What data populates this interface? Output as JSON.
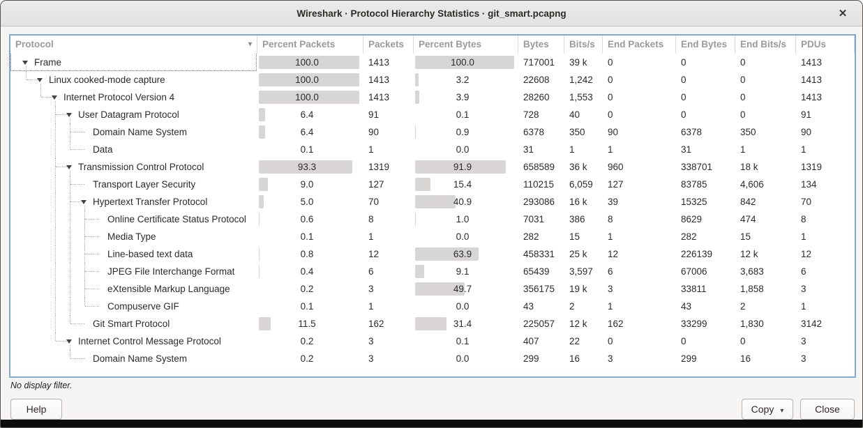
{
  "window": {
    "title": "Wireshark · Protocol Hierarchy Statistics · git_smart.pcapng"
  },
  "icons": {
    "close": "✕",
    "sort_down": "▾",
    "dropdown": "▾"
  },
  "table": {
    "columns": [
      {
        "key": "protocol",
        "label": "Protocol",
        "sorted": true
      },
      {
        "key": "pct_packets",
        "label": "Percent Packets",
        "percent": true
      },
      {
        "key": "packets",
        "label": "Packets"
      },
      {
        "key": "pct_bytes",
        "label": "Percent Bytes",
        "percent": true
      },
      {
        "key": "bytes",
        "label": "Bytes"
      },
      {
        "key": "bits",
        "label": "Bits/s"
      },
      {
        "key": "end_packets",
        "label": "End Packets"
      },
      {
        "key": "end_bytes",
        "label": "End Bytes"
      },
      {
        "key": "end_bits",
        "label": "End Bits/s"
      },
      {
        "key": "pdus",
        "label": "PDUs"
      }
    ],
    "rows": [
      {
        "protocol": "Frame",
        "level": 0,
        "expandable": true,
        "selected": true,
        "pct_packets": "100.0",
        "packets": "1413",
        "pct_bytes": "100.0",
        "bytes": "717001",
        "bits": "39 k",
        "end_packets": "0",
        "end_bytes": "0",
        "end_bits": "0",
        "pdus": "1413"
      },
      {
        "protocol": "Linux cooked-mode capture",
        "level": 1,
        "expandable": true,
        "pct_packets": "100.0",
        "packets": "1413",
        "pct_bytes": "3.2",
        "bytes": "22608",
        "bits": "1,242",
        "end_packets": "0",
        "end_bytes": "0",
        "end_bits": "0",
        "pdus": "1413"
      },
      {
        "protocol": "Internet Protocol Version 4",
        "level": 2,
        "expandable": true,
        "pct_packets": "100.0",
        "packets": "1413",
        "pct_bytes": "3.9",
        "bytes": "28260",
        "bits": "1,553",
        "end_packets": "0",
        "end_bytes": "0",
        "end_bits": "0",
        "pdus": "1413"
      },
      {
        "protocol": "User Datagram Protocol",
        "level": 3,
        "expandable": true,
        "pct_packets": "6.4",
        "packets": "91",
        "pct_bytes": "0.1",
        "bytes": "728",
        "bits": "40",
        "end_packets": "0",
        "end_bytes": "0",
        "end_bits": "0",
        "pdus": "91"
      },
      {
        "protocol": "Domain Name System",
        "level": 4,
        "expandable": false,
        "pct_packets": "6.4",
        "packets": "90",
        "pct_bytes": "0.9",
        "bytes": "6378",
        "bits": "350",
        "end_packets": "90",
        "end_bytes": "6378",
        "end_bits": "350",
        "pdus": "90"
      },
      {
        "protocol": "Data",
        "level": 4,
        "expandable": false,
        "pct_packets": "0.1",
        "packets": "1",
        "pct_bytes": "0.0",
        "bytes": "31",
        "bits": "1",
        "end_packets": "1",
        "end_bytes": "31",
        "end_bits": "1",
        "pdus": "1"
      },
      {
        "protocol": "Transmission Control Protocol",
        "level": 3,
        "expandable": true,
        "pct_packets": "93.3",
        "packets": "1319",
        "pct_bytes": "91.9",
        "bytes": "658589",
        "bits": "36 k",
        "end_packets": "960",
        "end_bytes": "338701",
        "end_bits": "18 k",
        "pdus": "1319"
      },
      {
        "protocol": "Transport Layer Security",
        "level": 4,
        "expandable": false,
        "pct_packets": "9.0",
        "packets": "127",
        "pct_bytes": "15.4",
        "bytes": "110215",
        "bits": "6,059",
        "end_packets": "127",
        "end_bytes": "83785",
        "end_bits": "4,606",
        "pdus": "134"
      },
      {
        "protocol": "Hypertext Transfer Protocol",
        "level": 4,
        "expandable": true,
        "pct_packets": "5.0",
        "packets": "70",
        "pct_bytes": "40.9",
        "bytes": "293086",
        "bits": "16 k",
        "end_packets": "39",
        "end_bytes": "15325",
        "end_bits": "842",
        "pdus": "70"
      },
      {
        "protocol": "Online Certificate Status Protocol",
        "level": 5,
        "expandable": false,
        "pct_packets": "0.6",
        "packets": "8",
        "pct_bytes": "1.0",
        "bytes": "7031",
        "bits": "386",
        "end_packets": "8",
        "end_bytes": "8629",
        "end_bits": "474",
        "pdus": "8"
      },
      {
        "protocol": "Media Type",
        "level": 5,
        "expandable": false,
        "pct_packets": "0.1",
        "packets": "1",
        "pct_bytes": "0.0",
        "bytes": "282",
        "bits": "15",
        "end_packets": "1",
        "end_bytes": "282",
        "end_bits": "15",
        "pdus": "1"
      },
      {
        "protocol": "Line-based text data",
        "level": 5,
        "expandable": false,
        "pct_packets": "0.8",
        "packets": "12",
        "pct_bytes": "63.9",
        "bytes": "458331",
        "bits": "25 k",
        "end_packets": "12",
        "end_bytes": "226139",
        "end_bits": "12 k",
        "pdus": "12"
      },
      {
        "protocol": "JPEG File Interchange Format",
        "level": 5,
        "expandable": false,
        "pct_packets": "0.4",
        "packets": "6",
        "pct_bytes": "9.1",
        "bytes": "65439",
        "bits": "3,597",
        "end_packets": "6",
        "end_bytes": "67006",
        "end_bits": "3,683",
        "pdus": "6"
      },
      {
        "protocol": "eXtensible Markup Language",
        "level": 5,
        "expandable": false,
        "pct_packets": "0.2",
        "packets": "3",
        "pct_bytes": "49.7",
        "bytes": "356175",
        "bits": "19 k",
        "end_packets": "3",
        "end_bytes": "33811",
        "end_bits": "1,858",
        "pdus": "3"
      },
      {
        "protocol": "Compuserve GIF",
        "level": 5,
        "expandable": false,
        "pct_packets": "0.1",
        "packets": "1",
        "pct_bytes": "0.0",
        "bytes": "43",
        "bits": "2",
        "end_packets": "1",
        "end_bytes": "43",
        "end_bits": "2",
        "pdus": "1"
      },
      {
        "protocol": "Git Smart Protocol",
        "level": 4,
        "expandable": false,
        "pct_packets": "11.5",
        "packets": "162",
        "pct_bytes": "31.4",
        "bytes": "225057",
        "bits": "12 k",
        "end_packets": "162",
        "end_bytes": "33299",
        "end_bits": "1,830",
        "pdus": "3142"
      },
      {
        "protocol": "Internet Control Message Protocol",
        "level": 3,
        "expandable": true,
        "pct_packets": "0.2",
        "packets": "3",
        "pct_bytes": "0.1",
        "bytes": "407",
        "bits": "22",
        "end_packets": "0",
        "end_bytes": "0",
        "end_bits": "0",
        "pdus": "3"
      },
      {
        "protocol": "Domain Name System",
        "level": 4,
        "expandable": false,
        "pct_packets": "0.2",
        "packets": "3",
        "pct_bytes": "0.0",
        "bytes": "299",
        "bits": "16",
        "end_packets": "3",
        "end_bytes": "299",
        "end_bits": "16",
        "pdus": "3"
      }
    ]
  },
  "footer": {
    "status": "No display filter.",
    "help_label": "Help",
    "copy_label": "Copy",
    "close_label": "Close"
  }
}
